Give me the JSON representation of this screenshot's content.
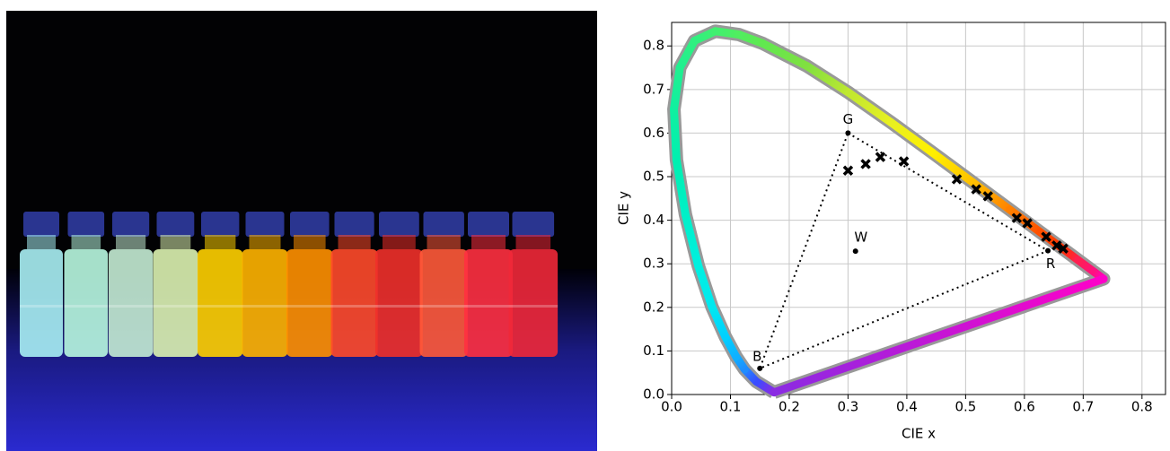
{
  "chart_data": {
    "type": "scatter",
    "xlabel": "CIE x",
    "ylabel": "CIE y",
    "xlim": [
      0,
      0.84
    ],
    "ylim": [
      0,
      0.854
    ],
    "xticks": [
      {
        "value": 0,
        "label": "0.0"
      },
      0.1,
      0.2,
      0.3,
      0.4,
      0.5,
      0.6,
      0.7,
      0.8
    ],
    "yticks": [
      {
        "value": 0,
        "label": "0.0"
      },
      0.1,
      0.2,
      0.3,
      0.4,
      0.5,
      0.6,
      0.7,
      0.8
    ],
    "grid": true,
    "locus": {
      "outline": "#999999",
      "x": [
        0.1741,
        0.144,
        0.1241,
        0.1096,
        0.0913,
        0.0687,
        0.0454,
        0.0235,
        0.0082,
        0.0039,
        0.0139,
        0.0389,
        0.0743,
        0.1142,
        0.1547,
        0.2296,
        0.3016,
        0.3731,
        0.4441,
        0.5125,
        0.5752,
        0.627,
        0.6658,
        0.6915,
        0.719,
        0.7347,
        0.1741
      ],
      "y": [
        0.005,
        0.0297,
        0.0578,
        0.0868,
        0.1327,
        0.2007,
        0.295,
        0.4127,
        0.5384,
        0.6548,
        0.7502,
        0.812,
        0.8338,
        0.8262,
        0.8059,
        0.7543,
        0.6923,
        0.6245,
        0.5547,
        0.4866,
        0.4242,
        0.3725,
        0.334,
        0.3083,
        0.2809,
        0.2653,
        0.005
      ],
      "colors": [
        "#8a2be2",
        "#3a4cff",
        "#1f8cff",
        "#10b0ff",
        "#00d0ff",
        "#00e8f0",
        "#00f0e0",
        "#00f0c8",
        "#00f0b0",
        "#10f0a0",
        "#20f090",
        "#30f080",
        "#40f070",
        "#50ee60",
        "#60e850",
        "#80e040",
        "#c0e830",
        "#e8f020",
        "#fff000",
        "#ffc000",
        "#ff8000",
        "#ff5000",
        "#ff3000",
        "#ff2050",
        "#ff1080",
        "#ff00c8",
        "#8a2be2"
      ]
    },
    "primaries": {
      "labels": [
        "G",
        "R",
        "B",
        "W"
      ],
      "x": [
        0.3,
        0.64,
        0.15,
        0.3127
      ],
      "y": [
        0.6,
        0.33,
        0.06,
        0.329
      ],
      "color": "#000000"
    },
    "samples": {
      "x": [
        0.3,
        0.33,
        0.355,
        0.395,
        0.485,
        0.518,
        0.538,
        0.587,
        0.605,
        0.637,
        0.655,
        0.666
      ],
      "y": [
        0.514,
        0.529,
        0.545,
        0.535,
        0.494,
        0.471,
        0.455,
        0.405,
        0.393,
        0.362,
        0.342,
        0.335
      ],
      "color": "#000000"
    }
  }
}
